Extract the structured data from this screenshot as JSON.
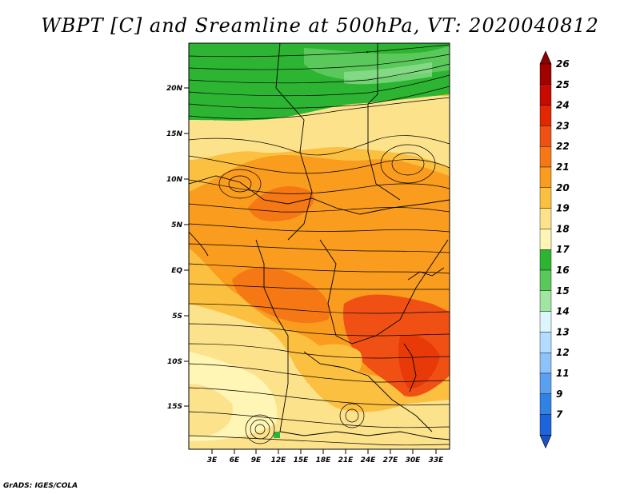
{
  "title": "WBPT [C] and Sreamline at 500hPa, VT: 2020040812",
  "credit": "GrADS: IGES/COLA",
  "map": {
    "lat_labels": [
      "20N",
      "15N",
      "10N",
      "5N",
      "EQ",
      "5S",
      "10S",
      "15S"
    ],
    "lon_labels": [
      "3E",
      "6E",
      "9E",
      "12E",
      "15E",
      "18E",
      "21E",
      "24E",
      "27E",
      "30E",
      "33E"
    ]
  },
  "colorbar": {
    "labels": [
      "26",
      "25",
      "24",
      "23",
      "22",
      "21",
      "20",
      "19",
      "18",
      "17",
      "16",
      "15",
      "14",
      "13",
      "12",
      "11",
      "9",
      "7"
    ],
    "colors": [
      "#a50000",
      "#c80a00",
      "#e12800",
      "#f05014",
      "#f57814",
      "#fa9c1e",
      "#fcc040",
      "#fde28c",
      "#fff5b4",
      "#2db432",
      "#5ac85a",
      "#a0e6a0",
      "#dcf5ff",
      "#b4dcff",
      "#8cc3fa",
      "#5aa0f0",
      "#3282e6",
      "#1e64dc"
    ],
    "top_arrow_color": "#8c0000",
    "bottom_arrow_color": "#1e50c8"
  }
}
